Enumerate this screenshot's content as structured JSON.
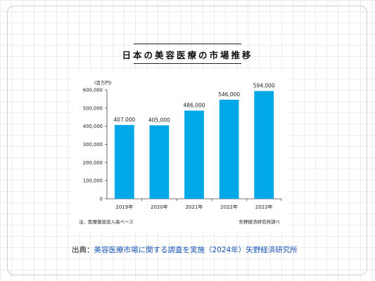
{
  "title": "日本の美容医療の市場推移",
  "chart_data": {
    "type": "bar",
    "unit_label": "(百万円)",
    "categories": [
      "2019年",
      "2020年",
      "2021年",
      "2022年",
      "2023年"
    ],
    "values": [
      407000,
      405000,
      486000,
      546000,
      594000
    ],
    "data_labels": [
      "407,000",
      "405,000",
      "486,000",
      "546,000",
      "594,000"
    ],
    "y_ticks": [
      "0",
      "100,000",
      "200,000",
      "300,000",
      "400,000",
      "500,000",
      "600,000"
    ],
    "ylim": [
      0,
      600000
    ],
    "grid": false,
    "bar_color": "#00a8e8"
  },
  "footnote_left": "注、医療施設収入高ベース",
  "footnote_right": "矢野経済研究所調べ",
  "source": {
    "prefix": "出典：",
    "text": "美容医療市場に関する調査を実施（2024年）矢野経済研究所"
  }
}
